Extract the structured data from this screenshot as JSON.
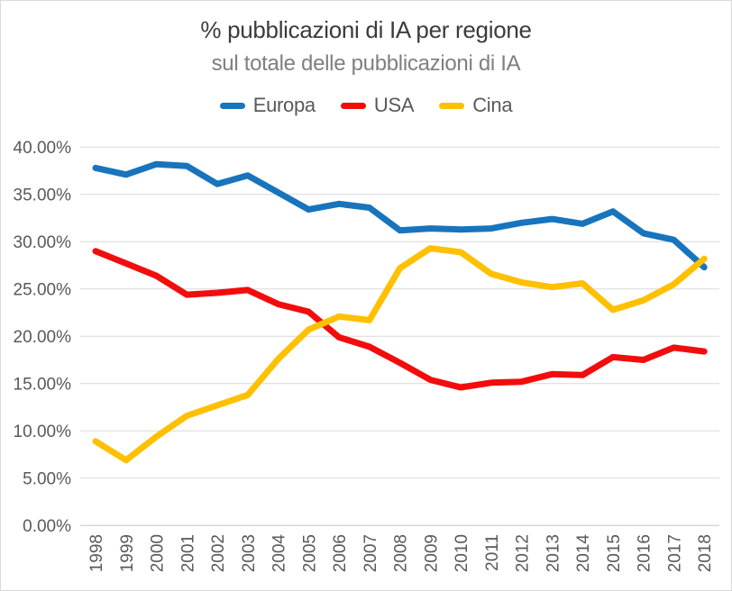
{
  "chart_data": {
    "type": "line",
    "title": "% pubblicazioni di IA per regione",
    "subtitle": "sul totale delle pubblicazioni di IA",
    "x": [
      "1998",
      "1999",
      "2000",
      "2001",
      "2002",
      "2003",
      "2004",
      "2005",
      "2006",
      "2007",
      "2008",
      "2009",
      "2010",
      "2011",
      "2012",
      "2013",
      "2014",
      "2015",
      "2016",
      "2017",
      "2018"
    ],
    "series": [
      {
        "name": "Europa",
        "color": "#1874BC",
        "values": [
          37.8,
          37.1,
          38.2,
          38.0,
          36.1,
          37.0,
          35.2,
          33.4,
          34.0,
          33.6,
          31.2,
          31.4,
          31.3,
          31.4,
          32.0,
          32.4,
          31.9,
          33.2,
          30.9,
          30.2,
          27.3
        ]
      },
      {
        "name": "USA",
        "color": "#F20D0D",
        "values": [
          29.0,
          27.7,
          26.4,
          24.4,
          24.6,
          24.9,
          23.4,
          22.6,
          19.9,
          18.9,
          17.2,
          15.4,
          14.6,
          15.1,
          15.2,
          16.0,
          15.9,
          17.8,
          17.5,
          18.8,
          18.4
        ]
      },
      {
        "name": "Cina",
        "color": "#FFC000",
        "values": [
          8.9,
          6.9,
          9.4,
          11.6,
          12.7,
          13.8,
          17.6,
          20.7,
          22.1,
          21.7,
          27.2,
          29.3,
          28.9,
          26.6,
          25.7,
          25.2,
          25.6,
          22.8,
          23.8,
          25.5,
          28.2
        ]
      }
    ],
    "ylim": [
      0,
      40
    ],
    "ytick_step": 5,
    "ytick_labels": [
      "0.00%",
      "5.00%",
      "10.00%",
      "15.00%",
      "20.00%",
      "25.00%",
      "30.00%",
      "35.00%",
      "40.00%"
    ],
    "grid": true,
    "legend_position": "top",
    "xlabel": "",
    "ylabel": "",
    "colors": {
      "gridline": "#D9D9D9",
      "axis_line": "#C6C6C6",
      "tick_text": "#595959",
      "title_text": "#3B3B3B",
      "subtitle_text": "#7F7F7F",
      "legend_text": "#595959",
      "background": "#FFFFFF",
      "border": "#D9D9D9"
    }
  }
}
